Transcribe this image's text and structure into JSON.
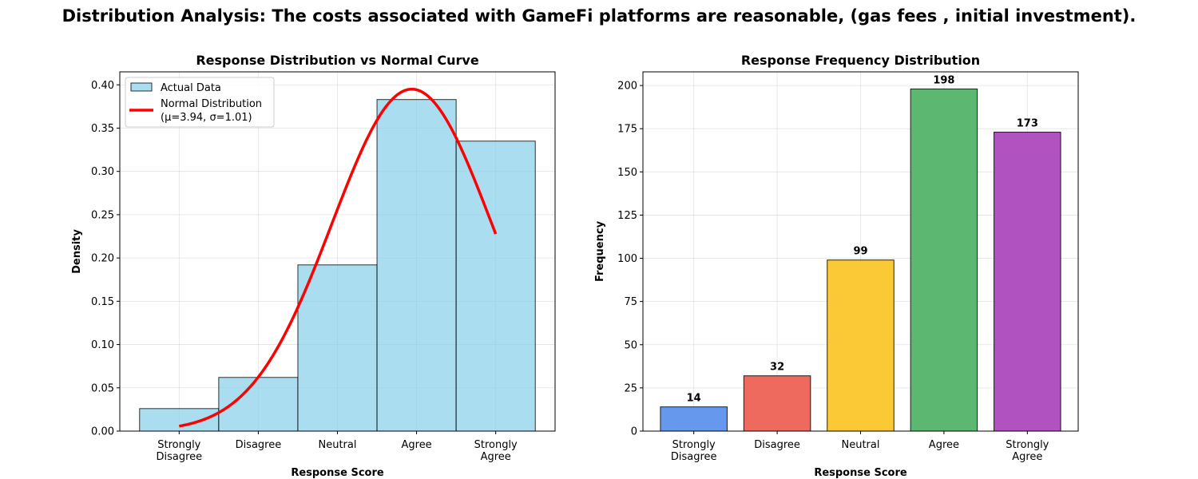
{
  "suptitle": "Distribution Analysis: The costs associated with GameFi platforms are reasonable, (gas fees , initial investment).",
  "chart_data": [
    {
      "type": "bar",
      "title": "Response Distribution vs Normal Curve",
      "xlabel": "Response Score",
      "ylabel": "Density",
      "categories": [
        "Strongly\nDisagree",
        "Disagree",
        "Neutral",
        "Agree",
        "Strongly\nAgree"
      ],
      "x": [
        1,
        2,
        3,
        4,
        5
      ],
      "values": [
        0.026,
        0.062,
        0.192,
        0.383,
        0.335
      ],
      "ylim": [
        0,
        0.415
      ],
      "yticks": [
        0.0,
        0.05,
        0.1,
        0.15,
        0.2,
        0.25,
        0.3,
        0.35,
        0.4
      ],
      "ytick_labels": [
        "0.00",
        "0.05",
        "0.10",
        "0.15",
        "0.20",
        "0.25",
        "0.30",
        "0.35",
        "0.40"
      ],
      "grid": true,
      "legend_position": "top-left",
      "series": [
        {
          "name": "Actual Data",
          "kind": "histogram",
          "color": "#87CEEB"
        },
        {
          "name": "Normal Distribution\n(μ=3.94, σ=1.01)",
          "kind": "line",
          "color": "#ff0000",
          "mu": 3.94,
          "sigma": 1.01
        }
      ]
    },
    {
      "type": "bar",
      "title": "Response Frequency Distribution",
      "xlabel": "Response Score",
      "ylabel": "Frequency",
      "categories": [
        "Strongly\nDisagree",
        "Disagree",
        "Neutral",
        "Agree",
        "Strongly\nAgree"
      ],
      "values": [
        14,
        32,
        99,
        198,
        173
      ],
      "data_labels": [
        "14",
        "32",
        "99",
        "198",
        "173"
      ],
      "colors": [
        "#6699ee",
        "#ee6a5f",
        "#fbc936",
        "#5cb870",
        "#b052c0"
      ],
      "ylim": [
        0,
        207.9
      ],
      "yticks": [
        0,
        25,
        50,
        75,
        100,
        125,
        150,
        175,
        200
      ],
      "ytick_labels": [
        "0",
        "25",
        "50",
        "75",
        "100",
        "125",
        "150",
        "175",
        "200"
      ],
      "grid": true
    }
  ]
}
